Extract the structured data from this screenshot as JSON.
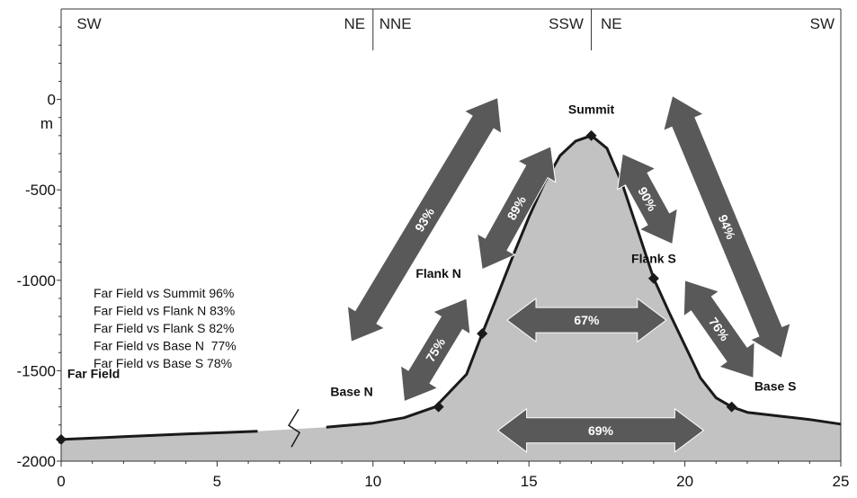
{
  "chart_data": {
    "type": "area",
    "xlim": [
      0,
      25
    ],
    "ylim": [
      -2000,
      500
    ],
    "x_ticks": [
      0,
      5,
      10,
      15,
      20,
      25
    ],
    "y_ticks": [
      0,
      -500,
      -1000,
      -1500,
      -2000
    ],
    "x_tick_labels": [
      "0",
      "5",
      "10",
      "15",
      "20",
      "25"
    ],
    "y_tick_labels": [
      "0",
      "-500",
      "-1000",
      "-1500",
      "-2000"
    ],
    "ylabel": "m",
    "profile": {
      "x": [
        0,
        2,
        4,
        6.3,
        8.5,
        10,
        11,
        12,
        13,
        13.5,
        14,
        14.5,
        15,
        15.5,
        16,
        16.5,
        17,
        17.5,
        18,
        18.5,
        19,
        19.5,
        20,
        20.5,
        21,
        21.5,
        22,
        23,
        24,
        25
      ],
      "y": [
        -1880,
        -1865,
        -1850,
        -1835,
        -1812,
        -1790,
        -1760,
        -1700,
        -1520,
        -1295,
        -1080,
        -860,
        -650,
        -460,
        -310,
        -230,
        -200,
        -270,
        -470,
        -730,
        -990,
        -1180,
        -1360,
        -1540,
        -1650,
        -1700,
        -1730,
        -1750,
        -1770,
        -1795
      ]
    },
    "break_x": 7.5,
    "section_dividers": [
      10,
      17
    ],
    "direction_labels": [
      {
        "text": "SW",
        "x": 0.5,
        "anchor": "start"
      },
      {
        "text": "NE",
        "x": 9.75,
        "anchor": "end"
      },
      {
        "text": "NNE",
        "x": 10.2,
        "anchor": "start"
      },
      {
        "text": "SSW",
        "x": 16.75,
        "anchor": "end"
      },
      {
        "text": "NE",
        "x": 17.3,
        "anchor": "start"
      },
      {
        "text": "SW",
        "x": 24.8,
        "anchor": "end"
      }
    ],
    "sites": [
      {
        "name": "Far Field",
        "x": 0,
        "y": -1880,
        "label_x": 0.2,
        "label_y": -1540,
        "anchor": "start"
      },
      {
        "name": "Base N",
        "x": 12.1,
        "y": -1700,
        "label_x": 10.0,
        "label_y": -1640,
        "anchor": "end"
      },
      {
        "name": "Flank N",
        "x": 13.5,
        "y": -1295,
        "label_x": 12.1,
        "label_y": -985,
        "anchor": "middle"
      },
      {
        "name": "Summit",
        "x": 17.0,
        "y": -200,
        "label_x": 17.0,
        "label_y": -80,
        "anchor": "middle"
      },
      {
        "name": "Flank S",
        "x": 19.0,
        "y": -990,
        "label_x": 19.0,
        "label_y": -905,
        "anchor": "middle"
      },
      {
        "name": "Base S",
        "x": 21.5,
        "y": -1700,
        "label_x": 22.9,
        "label_y": -1610,
        "anchor": "middle"
      }
    ],
    "similarity_arrows": [
      {
        "label": "93%",
        "x1": 9.3,
        "y1": -1340,
        "x2": 14.0,
        "y2": 10
      },
      {
        "label": "89%",
        "x1": 13.5,
        "y1": -940,
        "x2": 15.7,
        "y2": -260
      },
      {
        "label": "90%",
        "x1": 18.0,
        "y1": -300,
        "x2": 19.6,
        "y2": -800
      },
      {
        "label": "94%",
        "x1": 19.6,
        "y1": 20,
        "x2": 23.1,
        "y2": -1430
      },
      {
        "label": "75%",
        "x1": 11.0,
        "y1": -1670,
        "x2": 13.0,
        "y2": -1100
      },
      {
        "label": "76%",
        "x1": 20.0,
        "y1": -1000,
        "x2": 22.2,
        "y2": -1540
      },
      {
        "label": "67%",
        "x1": 14.3,
        "y1": -1220,
        "x2": 19.4,
        "y2": -1220
      },
      {
        "label": "69%",
        "x1": 14.0,
        "y1": -1830,
        "x2": 20.6,
        "y2": -1830
      }
    ],
    "annotations": [
      "Far Field vs Summit 96%",
      "Far Field vs Flank N 83%",
      "Far Field vs Flank S 82%",
      "Far Field vs Base N  77%",
      "Far Field vs Base S 78%"
    ],
    "colors": {
      "fill": "#c2c2c2",
      "line": "#1a1a1a",
      "arrow": "#595959",
      "axis": "#333333"
    }
  }
}
